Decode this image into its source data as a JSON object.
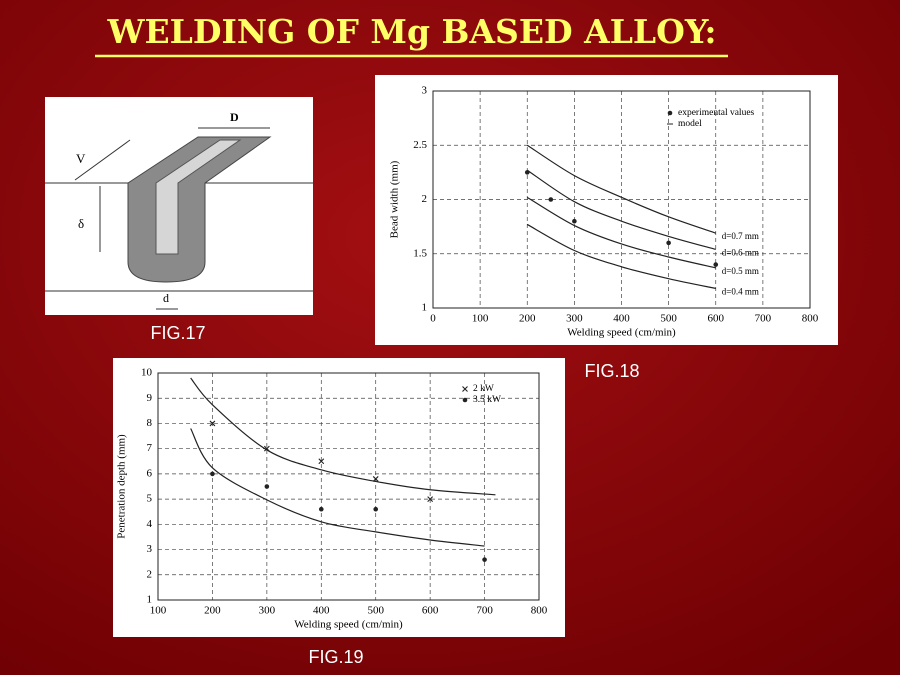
{
  "title": "WELDING OF Mg BASED ALLOY:",
  "figure17": {
    "caption": "FIG.17",
    "labels": {
      "speed": "V",
      "width": "D",
      "depth": "δ",
      "diameter": "d"
    }
  },
  "chart_data": [
    {
      "type": "line",
      "caption": "FIG.18",
      "xlabel": "Welding speed (cm/min)",
      "ylabel": "Bead width (mm)",
      "xlim": [
        0,
        800
      ],
      "xticks": [
        0,
        100,
        200,
        300,
        400,
        500,
        600,
        700,
        800
      ],
      "ylim": [
        1,
        3
      ],
      "yticks": [
        1,
        1.5,
        2,
        2.5,
        3
      ],
      "grid": true,
      "color": "#222222",
      "series": [
        {
          "name": "experimental values",
          "kind": "points",
          "marker": "dot",
          "x": [
            200,
            250,
            300,
            500,
            600
          ],
          "values": [
            2.25,
            2.0,
            1.8,
            1.6,
            1.4
          ]
        },
        {
          "name": "model",
          "kind": "curves",
          "marker": "dash",
          "curves": [
            {
              "label": "d=0.7  mm",
              "x": [
                200,
                300,
                400,
                500,
                600
              ],
              "values": [
                2.5,
                2.22,
                2.02,
                1.84,
                1.69
              ]
            },
            {
              "label": "d=0.6  mm",
              "x": [
                200,
                300,
                400,
                500,
                600
              ],
              "values": [
                2.27,
                1.98,
                1.8,
                1.66,
                1.54
              ]
            },
            {
              "label": "d=0.5  mm",
              "x": [
                200,
                300,
                400,
                500,
                600
              ],
              "values": [
                2.02,
                1.76,
                1.59,
                1.47,
                1.37
              ]
            },
            {
              "label": "d=0.4  mm",
              "x": [
                200,
                300,
                400,
                500,
                600
              ],
              "values": [
                1.77,
                1.53,
                1.38,
                1.27,
                1.18
              ]
            }
          ]
        }
      ]
    },
    {
      "type": "line",
      "caption": "FIG.19",
      "xlabel": "Welding speed (cm/min)",
      "ylabel": "Penetration depth (mm)",
      "xlim": [
        100,
        800
      ],
      "xticks": [
        100,
        200,
        300,
        400,
        500,
        600,
        700,
        800
      ],
      "ylim": [
        1,
        10
      ],
      "yticks": [
        1,
        2,
        3,
        4,
        5,
        6,
        7,
        8,
        9,
        10
      ],
      "grid": true,
      "color": "#222222",
      "series": [
        {
          "name": "2 kW",
          "kind": "points",
          "marker": "x",
          "x": [
            200,
            300,
            400,
            500,
            600
          ],
          "values": [
            8,
            7,
            6.5,
            5.8,
            5
          ]
        },
        {
          "name": "3.5 kW",
          "kind": "points",
          "marker": "dot",
          "x": [
            200,
            300,
            400,
            500,
            700
          ],
          "values": [
            6,
            5.5,
            4.6,
            4.6,
            2.6
          ]
        },
        {
          "kind": "curves",
          "curves": [
            {
              "x": [
                160,
                200,
                300,
                400,
                500,
                600,
                720
              ],
              "values": [
                9.8,
                8.74,
                6.95,
                6.16,
                5.7,
                5.37,
                5.17
              ]
            },
            {
              "x": [
                160,
                200,
                300,
                400,
                500,
                600,
                700
              ],
              "values": [
                7.8,
                6.24,
                4.97,
                4.1,
                3.7,
                3.38,
                3.14
              ]
            }
          ]
        }
      ]
    }
  ]
}
